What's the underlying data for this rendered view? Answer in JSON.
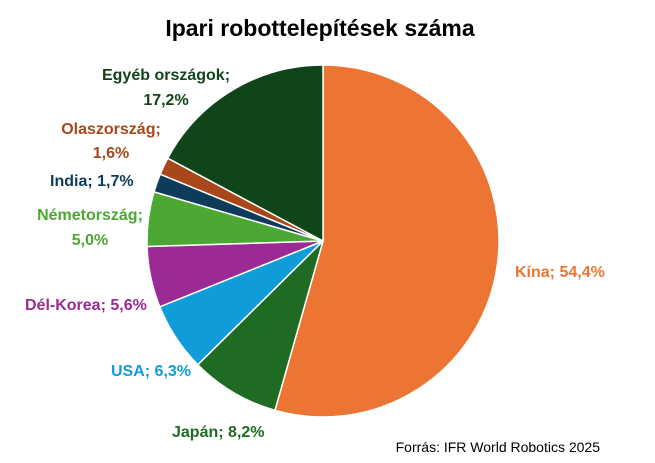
{
  "chart_data": {
    "type": "pie",
    "title": "Ipari robottelepítések száma",
    "source": "Forrás: IFR World Robotics 2025",
    "start_angle_deg": 0,
    "direction": "clockwise",
    "slices": [
      {
        "label": "Kína; 54,4%",
        "value": 54.4,
        "color": "#ED7534"
      },
      {
        "label": "Japán; 8,2%",
        "value": 8.2,
        "color": "#1F6B24"
      },
      {
        "label": "USA; 6,3%",
        "value": 6.3,
        "color": "#109CD8"
      },
      {
        "label": "Dél-Korea; 5,6%",
        "value": 5.6,
        "color": "#9C2A94"
      },
      {
        "label": "Németország; 5,0%",
        "value": 5.0,
        "color": "#4DA733"
      },
      {
        "label": "India; 1,7%",
        "value": 1.7,
        "color": "#0F3B5A"
      },
      {
        "label": "Olaszország; 1,6%",
        "value": 1.6,
        "color": "#A8481A"
      },
      {
        "label": "Egyéb országok; 17,2%",
        "value": 17.2,
        "color": "#10451A"
      }
    ]
  }
}
